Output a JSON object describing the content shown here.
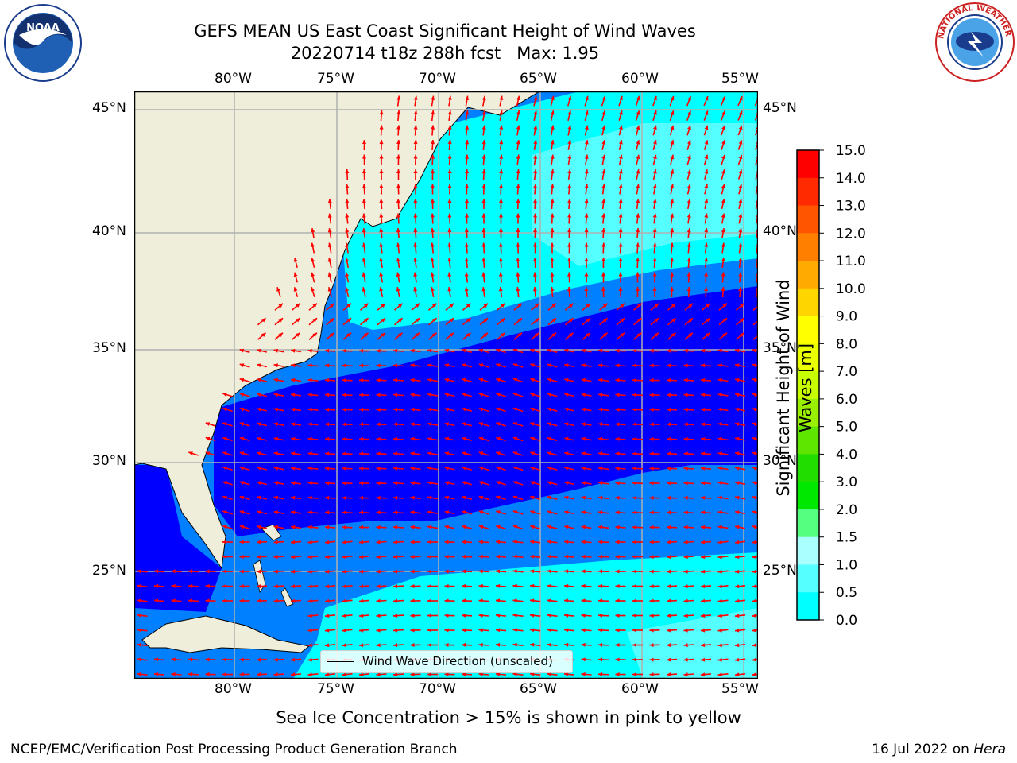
{
  "title": {
    "line1": "GEFS MEAN US East Coast Significant Height of Wind Waves",
    "line2": "20220714 t18z 288h fcst   Max: 1.95"
  },
  "subtitle": "Sea Ice Concentration > 15% is shown in pink to yellow",
  "footer": {
    "left": "NCEP/EMC/Verification Post Processing Product Generation Branch",
    "right_date": "16 Jul 2022 on ",
    "right_host": "Hera"
  },
  "map": {
    "lon_labels": [
      "80°W",
      "75°W",
      "70°W",
      "65°W",
      "60°W",
      "55°W"
    ],
    "lat_labels": [
      "45°N",
      "40°N",
      "35°N",
      "30°N",
      "25°N"
    ],
    "lon_range": [
      -85,
      -54.5
    ],
    "lat_range": [
      20.5,
      46
    ],
    "legend_label": "Wind Wave Direction (unscaled)"
  },
  "colorbar": {
    "title_line1": "Significant Height of Wind",
    "title_line2": "Waves [m]",
    "tick_labels": [
      "15.0",
      "14.0",
      "13.0",
      "12.0",
      "11.0",
      "10.0",
      "9.0",
      "8.0",
      "7.0",
      "6.0",
      "5.0",
      "4.0",
      "3.0",
      "2.0",
      "1.5",
      "1.0",
      "0.5",
      "0.0"
    ],
    "colors": [
      "#ff0000",
      "#ff2a00",
      "#ff5500",
      "#ff8000",
      "#ffaa00",
      "#ffd500",
      "#ffff00",
      "#eaff00",
      "#c8ff00",
      "#99f000",
      "#5fe600",
      "#22dd00",
      "#00e800",
      "#55ff80",
      "#aaffff",
      "#55ffff",
      "#00ffff",
      "#0080ff",
      "#0000ff"
    ],
    "levels": [
      0.0,
      0.5,
      1.0,
      1.5,
      2.0,
      3.0,
      4.0,
      5.0,
      6.0,
      7.0,
      8.0,
      9.0,
      10.0,
      11.0,
      12.0,
      13.0,
      14.0,
      15.0
    ]
  },
  "logos": {
    "noaa_text": "NOAA",
    "nws_text": "NATIONAL WEATHER SERVICE"
  },
  "colors": {
    "land": "#efeeda",
    "arrow": "#ff0000",
    "grid": "#b0b0b0"
  }
}
